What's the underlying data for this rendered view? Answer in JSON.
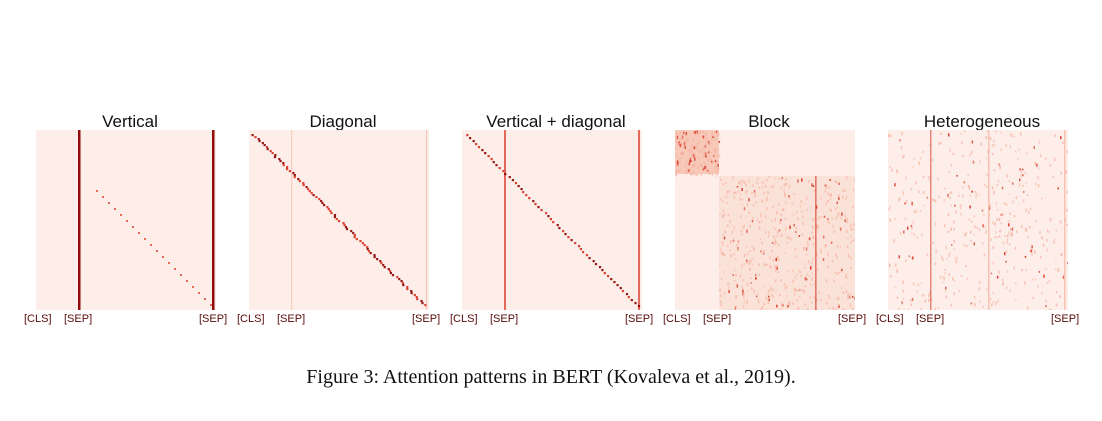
{
  "figure": {
    "caption": "Figure 3: Attention patterns in BERT (Kovaleva et al., 2019).",
    "colors": {
      "background": "#fdeee9",
      "strong": "#8b0000",
      "medium": "#d6311f",
      "light": "#f6b8a6"
    },
    "panels": [
      {
        "title": "Vertical",
        "ticks": [
          "[CLS]",
          "[SEP]",
          "[SEP]"
        ],
        "pattern": "vertical"
      },
      {
        "title": "Diagonal",
        "ticks": [
          "[CLS]",
          "[SEP]",
          "[SEP]"
        ],
        "pattern": "diagonal"
      },
      {
        "title": "Vertical + diagonal",
        "ticks": [
          "[CLS]",
          "[SEP]",
          "[SEP]"
        ],
        "pattern": "vertical-diagonal"
      },
      {
        "title": "Block",
        "ticks": [
          "[CLS]",
          "[SEP]",
          "[SEP]"
        ],
        "pattern": "block"
      },
      {
        "title": "Heterogeneous",
        "ticks": [
          "[CLS]",
          "[SEP]",
          "[SEP]"
        ],
        "pattern": "heterogeneous"
      }
    ]
  }
}
